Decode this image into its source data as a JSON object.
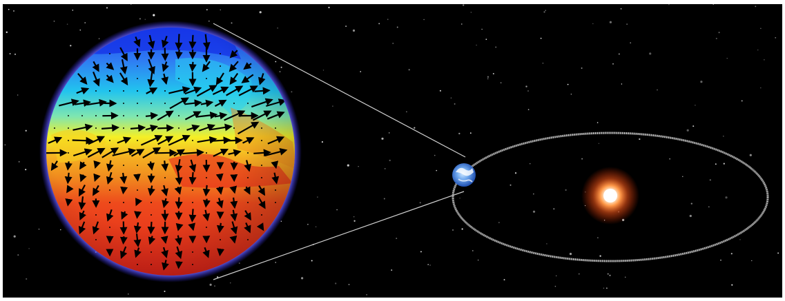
{
  "scene": {
    "background_color": "#000000",
    "frame_color": "#ffffff",
    "planet_closeup": {
      "kind": "planet-temperature-map",
      "palette": {
        "cold": "#1a3df0",
        "cool": "#22c4ee",
        "mild": "#f4ef26",
        "warm": "#f08a1e",
        "hot": "#e8261a",
        "rim_glow": "#5a57ff"
      },
      "overlay": "wind-vector-arrows",
      "arrow_color": "#000000"
    },
    "zoom_lines_color": "#cfcfcf",
    "small_planet": {
      "kind": "planet-earthlike",
      "colors": [
        "#2f6fd8",
        "#ffffff",
        "#9fd0ff"
      ]
    },
    "orbit": {
      "kind": "elliptical-orbit",
      "color": "#c8c8c8"
    },
    "star": {
      "kind": "host-star",
      "core": "#ffffff",
      "glow": "#ff5a1a"
    },
    "starfield_color": "#ffffff"
  }
}
